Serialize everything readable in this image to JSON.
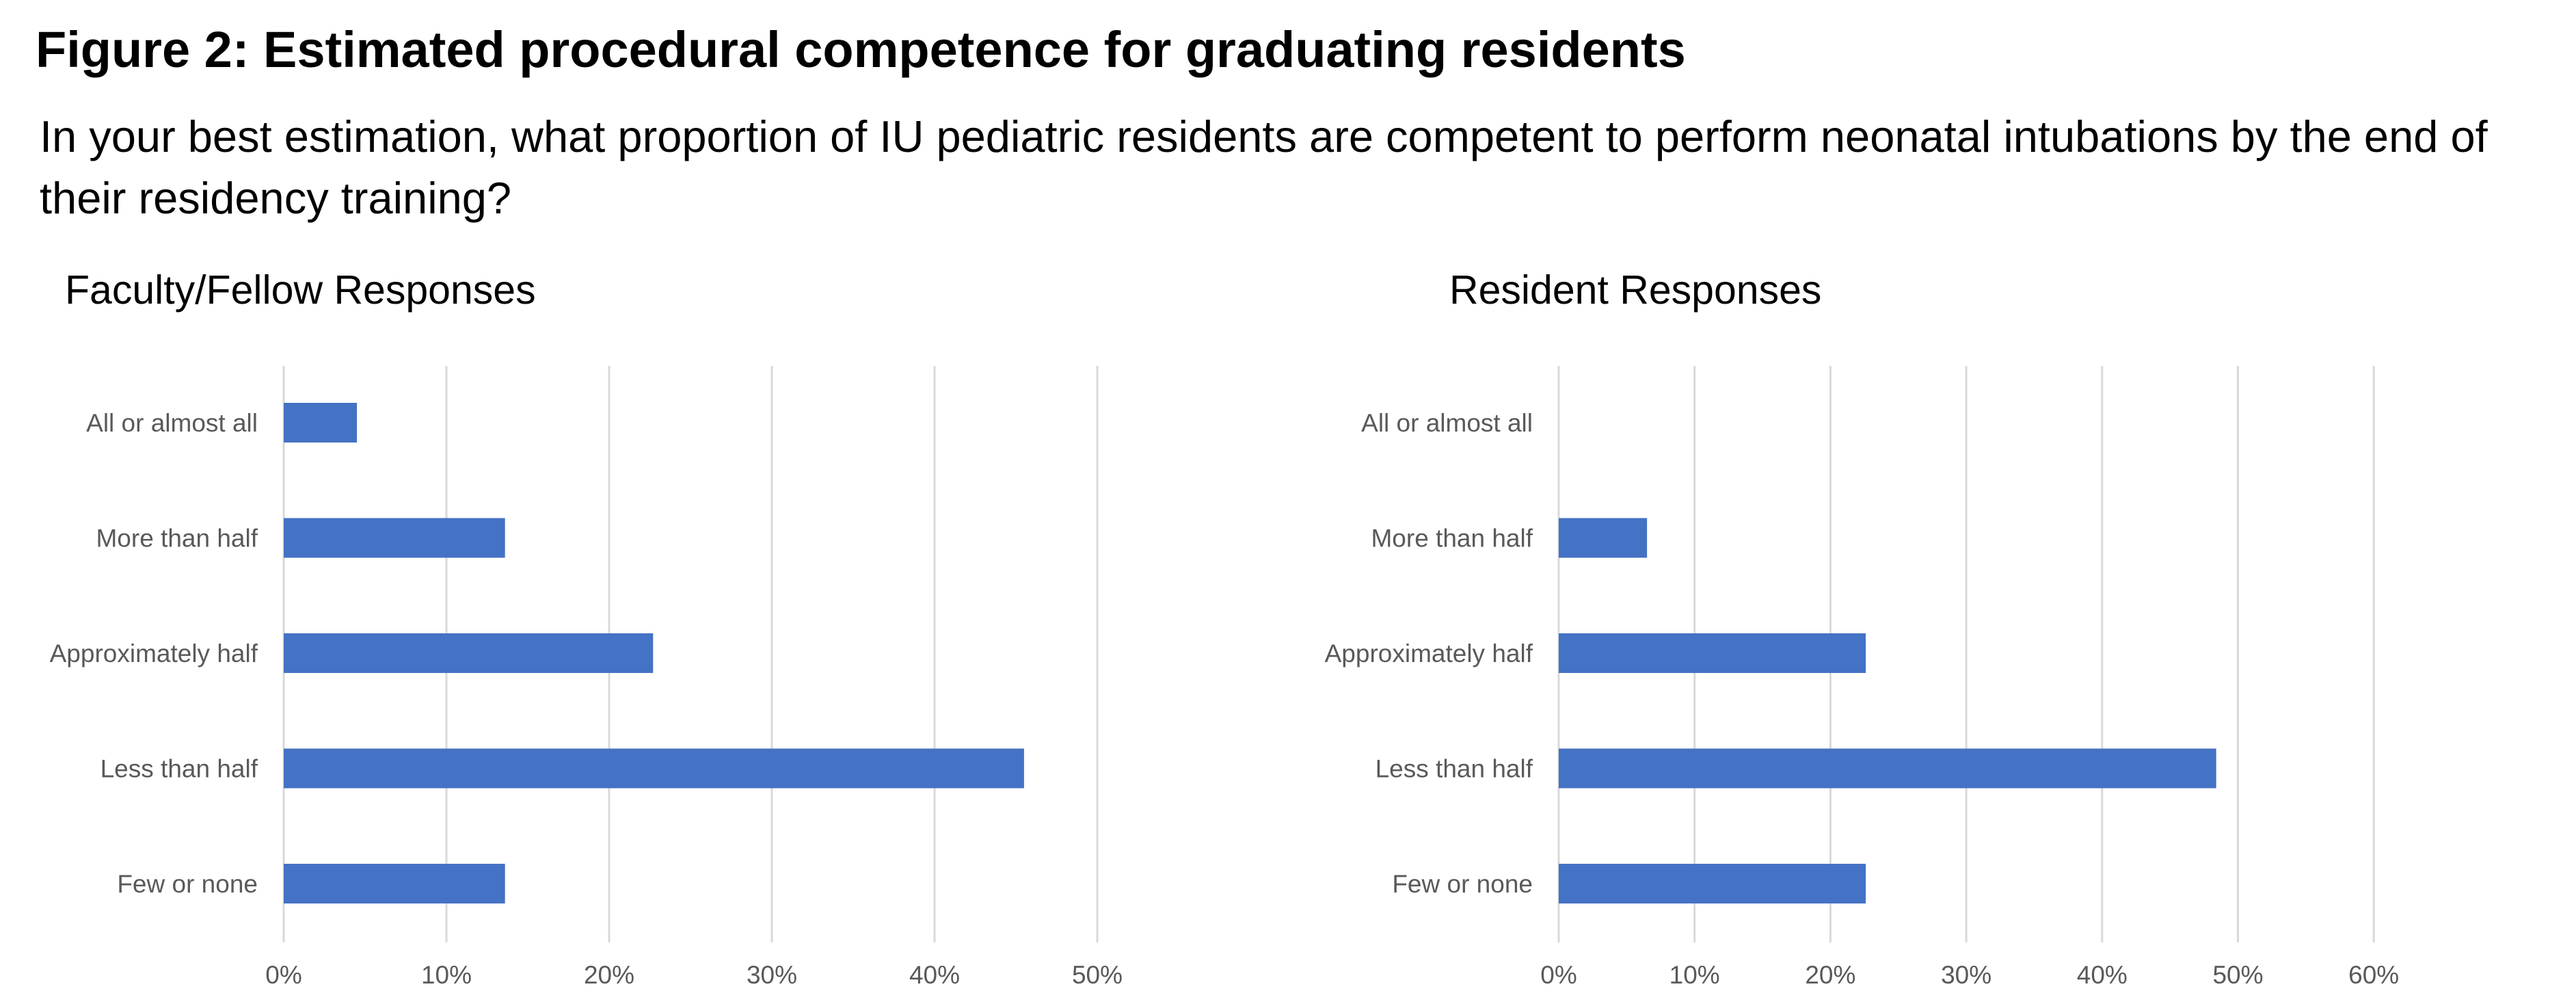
{
  "figure": {
    "title": "Figure 2: Estimated procedural competence for graduating residents",
    "question": "In your best estimation, what proportion of IU pediatric residents are competent to perform neonatal intubations by the end of their residency training?"
  },
  "chart_data": [
    {
      "type": "bar",
      "orientation": "horizontal",
      "title": "Faculty/Fellow Responses",
      "categories": [
        "All or almost all",
        "More than half",
        "Approximately half",
        "Less than half",
        "Few or none"
      ],
      "values": [
        4.5,
        13.6,
        22.7,
        45.5,
        13.6
      ],
      "xlim": [
        0,
        50
      ],
      "xticks": [
        0,
        10,
        20,
        30,
        40,
        50
      ],
      "xtick_labels": [
        "0%",
        "10%",
        "20%",
        "30%",
        "40%",
        "50%"
      ],
      "grid": true,
      "bar_color": "#4472C4"
    },
    {
      "type": "bar",
      "orientation": "horizontal",
      "title": "Resident Responses",
      "categories": [
        "All or almost all",
        "More than half",
        "Approximately half",
        "Less than half",
        "Few or none"
      ],
      "values": [
        0,
        6.5,
        22.6,
        48.4,
        22.6
      ],
      "xlim": [
        0,
        60
      ],
      "xticks": [
        0,
        10,
        20,
        30,
        40,
        50,
        60
      ],
      "xtick_labels": [
        "0%",
        "10%",
        "20%",
        "30%",
        "40%",
        "50%",
        "60%"
      ],
      "grid": true,
      "bar_color": "#4472C4"
    }
  ]
}
